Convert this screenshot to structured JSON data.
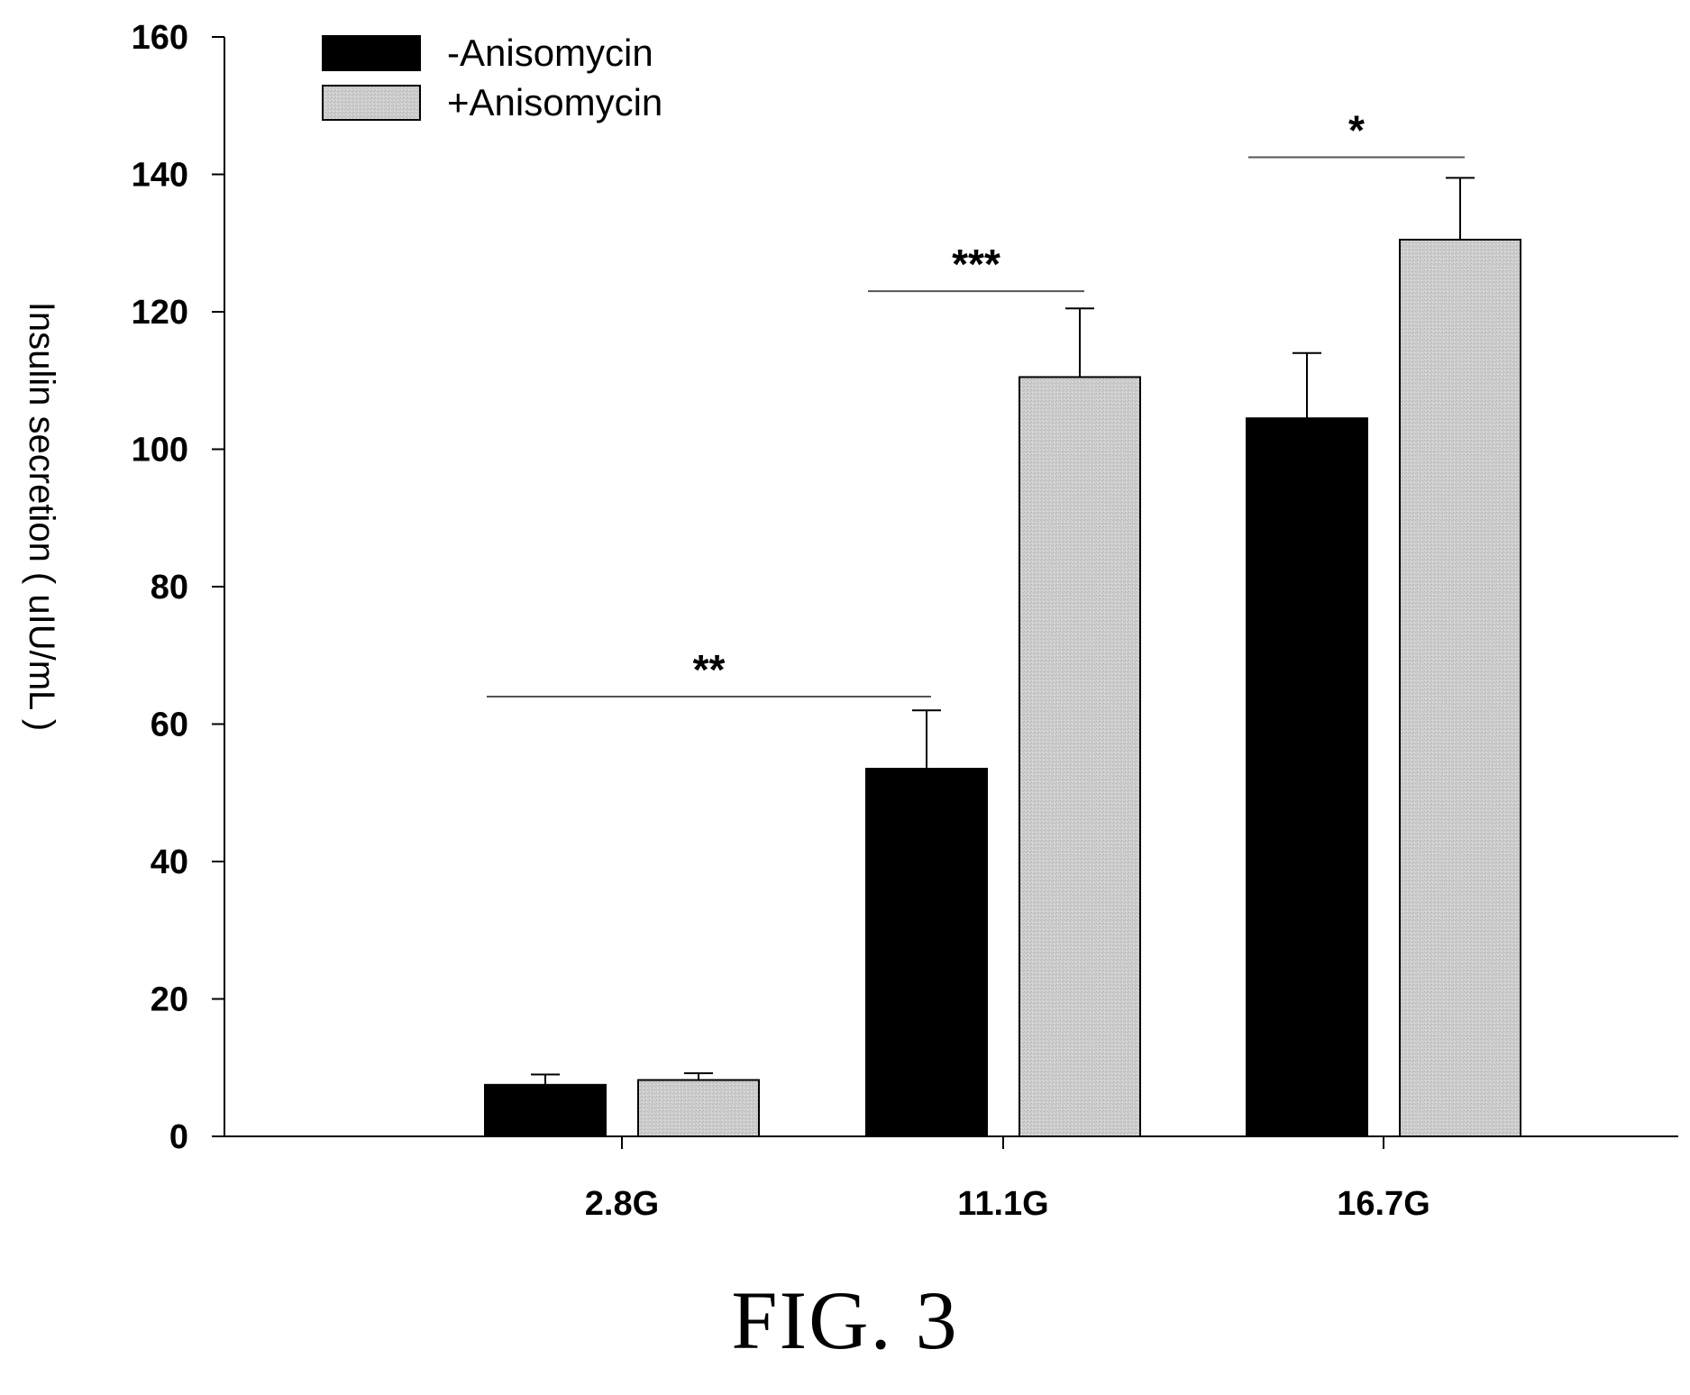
{
  "figure": {
    "caption": "FIG. 3"
  },
  "chart_data": {
    "type": "bar",
    "title": "",
    "xlabel": "",
    "ylabel": "Insulin secretion ( uIU/mL )",
    "ylim": [
      0,
      160
    ],
    "yticks": [
      0,
      20,
      40,
      60,
      80,
      100,
      120,
      140,
      160
    ],
    "categories": [
      "2.8G",
      "11.1G",
      "16.7G"
    ],
    "grid": false,
    "legend_position": "top-left",
    "series": [
      {
        "name": "-Anisomycin",
        "color": "#000000",
        "values": [
          7.5,
          53.5,
          104.5
        ],
        "errors": [
          1.5,
          8.5,
          9.5
        ]
      },
      {
        "name": "+Anisomycin",
        "color": "#c8c8c8",
        "values": [
          8.2,
          110.5,
          130.5
        ],
        "errors": [
          1.0,
          10.0,
          9.0
        ]
      }
    ],
    "annotations": [
      {
        "label": "**",
        "from": [
          0,
          0
        ],
        "to": [
          1,
          0
        ],
        "y": 64
      },
      {
        "label": "***",
        "from": [
          1,
          0
        ],
        "to": [
          1,
          1
        ],
        "y": 123
      },
      {
        "label": "*",
        "from": [
          2,
          0
        ],
        "to": [
          2,
          1
        ],
        "y": 142.5
      }
    ]
  }
}
